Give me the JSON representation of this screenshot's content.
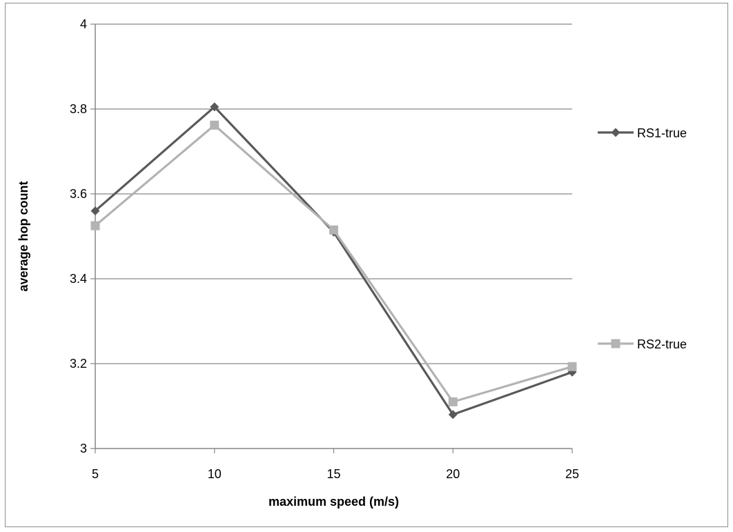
{
  "chart_data": {
    "type": "line",
    "xlabel": "maximum speed (m/s)",
    "ylabel": "average hop count",
    "x": [
      5,
      10,
      15,
      20,
      25
    ],
    "x_tick_labels": [
      "5",
      "10",
      "15",
      "20",
      "25"
    ],
    "ylim": [
      3,
      4
    ],
    "y_ticks": [
      3,
      3.2,
      3.4,
      3.6,
      3.8,
      4
    ],
    "y_tick_labels": [
      "3",
      "3.2",
      "3.4",
      "3.6",
      "3.8",
      "4"
    ],
    "grid": "horizontal",
    "legend_position": "right",
    "series": [
      {
        "name": "RS1-true",
        "values": [
          3.56,
          3.805,
          3.51,
          3.08,
          3.18
        ],
        "color": "#595959",
        "marker": "diamond"
      },
      {
        "name": "RS2-true",
        "values": [
          3.525,
          3.762,
          3.515,
          3.11,
          3.193
        ],
        "color": "#b3b3b3",
        "marker": "square"
      }
    ]
  }
}
